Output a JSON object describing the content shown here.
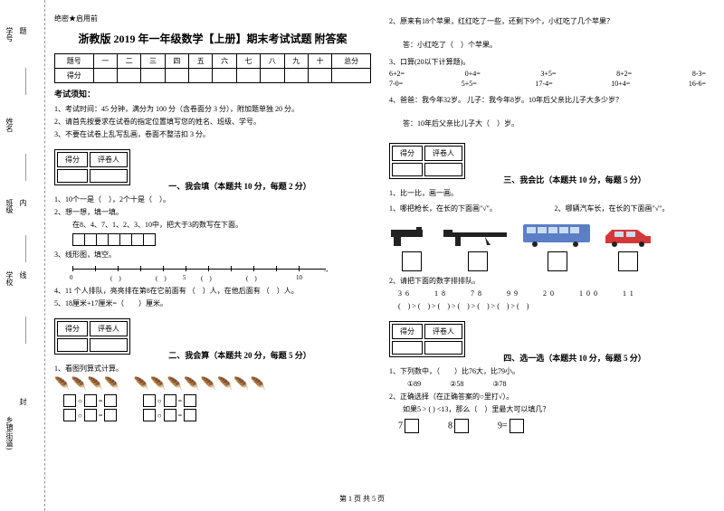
{
  "binding": {
    "labels": [
      "学号",
      "姓名",
      "班级",
      "学校",
      "乡镇(街道)"
    ],
    "sideText": [
      "题",
      "答",
      "内",
      "线",
      "封"
    ]
  },
  "header": {
    "tag": "绝密★启用前",
    "title": "浙教版 2019 年一年级数学【上册】期末考试试题 附答案"
  },
  "scoreTable": {
    "row1": [
      "题号",
      "一",
      "二",
      "三",
      "四",
      "五",
      "六",
      "七",
      "八",
      "九",
      "十",
      "总分"
    ],
    "row2Label": "得分"
  },
  "notice": {
    "title": "考试须知：",
    "items": [
      "1、考试时间：45 分钟，满分为 100 分（含卷面分 3 分），附加题单独 20 分。",
      "2、请首先按要求在试卷的指定位置填写您的姓名、班级、学号。",
      "3、不要在试卷上乱写乱画，卷面不整洁扣 3 分。"
    ]
  },
  "sectionBoxLabels": {
    "score": "得分",
    "grader": "评卷人"
  },
  "section1": {
    "title": "一、我会填（本题共 10 分，每题 2 分）",
    "q1": "1、10个一是（　），2个十是（　）。",
    "q2": "2、想一想，填一填。",
    "q2text": "在8、4、7、1、2、3、10中，把大于3的数写在下面。",
    "q3": "3、线形图，填空。",
    "numline": {
      "labels": [
        "0",
        "5",
        "10"
      ],
      "positions": [
        0,
        125,
        250
      ]
    },
    "q4": "4、11 个人排队，亮亮排在第8在它前面有 （　）人，在他后面有 （　）人。",
    "q5": "5、18厘米+17厘米=（　　）厘米。"
  },
  "section2": {
    "title": "二、我会算（本题共 20 分，每题 5 分）",
    "q1": "1、看图列算式计算。"
  },
  "rightTop": {
    "q2": "2、原来有18个苹果，红红吃了一些，还剩下9个，小红吃了几个苹果？",
    "q2ans": "答：小红吃了（　）个苹果。",
    "q3": "3、口算(20以下计算题)。",
    "calc1": [
      "6+2=",
      "0+4=",
      "3+5=",
      "8+2=",
      "8-3="
    ],
    "calc2": [
      "7-0=",
      "5+5=",
      "17-4=",
      "10+4=",
      "16-6="
    ],
    "q4": "4、爸爸：我今年32岁。 儿子：我今年8岁。10年后父亲比儿子大多少岁？",
    "q4ans": "答：10年后父亲比儿子大（　）岁。"
  },
  "section3": {
    "title": "三、我会比（本题共 10 分，每题 5 分）",
    "q1": "1、比一比，画一画。",
    "q1a": "1、哪把枪长，在长的下面画\"√\"。",
    "q1b": "2、哪辆汽车长，在长的下面画\"√\"。",
    "q2": "2、请把下面的数字排排队。",
    "nums": "36　　18　　78　　99　　20　　100　　11",
    "order": "(　) > (　) > (　) > (　) > (　) > (　) > (　)"
  },
  "section4": {
    "title": "四、选一选（本题共 10 分，每题 5 分）",
    "q1": "1、下列数中，（　　）比76大，比79小。",
    "q1opts": "①89　　　　②58　　　　③78",
    "q2": "2、正确选择（在正确答案的○里打√）。",
    "q2text": "如果5 > ( ) <13，那么（　）里最大可以填几？",
    "nums": [
      "7",
      "8",
      "9="
    ]
  },
  "footer": "第 1 页 共 5 页",
  "colors": {
    "titleRed": "#000000",
    "busBlue": "#5b7fc7",
    "carRed": "#d43838"
  }
}
